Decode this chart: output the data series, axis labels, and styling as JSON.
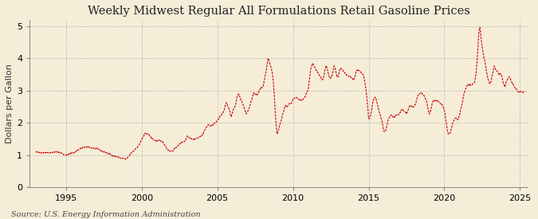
{
  "title": "Weekly Midwest Regular All Formulations Retail Gasoline Prices",
  "ylabel": "Dollars per Gallon",
  "source": "Source: U.S. Energy Information Administration",
  "background_color": "#F5EDD8",
  "line_color": "#CC0000",
  "xlim_start": 1992.6,
  "xlim_end": 2025.5,
  "ylim": [
    0,
    5.2
  ],
  "yticks": [
    0,
    1,
    2,
    3,
    4,
    5
  ],
  "xticks": [
    1995,
    2000,
    2005,
    2010,
    2015,
    2020,
    2025
  ],
  "title_fontsize": 10.5,
  "label_fontsize": 8,
  "tick_fontsize": 8,
  "source_fontsize": 7
}
